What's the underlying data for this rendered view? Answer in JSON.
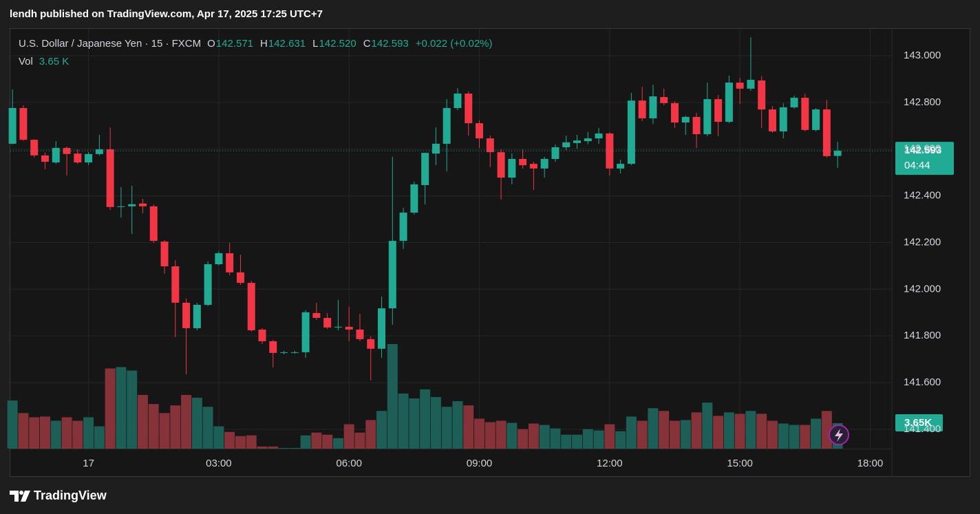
{
  "header": {
    "title": "lendh published on TradingView.com, Apr 17, 2025 17:25 UTC+7"
  },
  "footer": {
    "brand": "TradingView"
  },
  "chart_data": {
    "type": "candlestick",
    "legend": {
      "symbol": "U.S. Dollar / Japanese Yen · 15 · FXCM",
      "ohlc": [
        {
          "key": "O",
          "value": "142.571"
        },
        {
          "key": "H",
          "value": "142.631"
        },
        {
          "key": "L",
          "value": "142.520"
        },
        {
          "key": "C",
          "value": "142.593"
        }
      ],
      "change": "+0.022 (+0.02%)",
      "volume_key": "Vol",
      "volume_value": "3.65 K"
    },
    "last_price_label": "142.593",
    "countdown": "04:44",
    "volume_axis_label": "3.65K",
    "up_color": "#22ab94",
    "down_color": "#f23645",
    "volume_up_color": "#1d5f57",
    "volume_down_color": "#853238",
    "grid": true,
    "x": [
      -105,
      -90,
      -75,
      -60,
      -45,
      -30,
      -15,
      0,
      15,
      30,
      45,
      60,
      75,
      90,
      105,
      120,
      135,
      150,
      165,
      180,
      195,
      210,
      225,
      240,
      255,
      270,
      285,
      300,
      315,
      330,
      345,
      360,
      375,
      390,
      405,
      420,
      435,
      450,
      465,
      480,
      495,
      510,
      525,
      540,
      555,
      570,
      585,
      600,
      615,
      630,
      645,
      660,
      675,
      690,
      705,
      720,
      735,
      750,
      765,
      780,
      795,
      810,
      825,
      840,
      855,
      870,
      885,
      900,
      915,
      930,
      945,
      960,
      975,
      990,
      1005,
      1020,
      1035
    ],
    "open": [
      142.623,
      142.776,
      142.64,
      142.573,
      142.543,
      142.605,
      142.581,
      142.543,
      142.579,
      142.599,
      142.352,
      142.355,
      142.367,
      142.355,
      142.204,
      142.098,
      141.942,
      141.833,
      141.933,
      142.107,
      142.154,
      142.072,
      142.027,
      141.827,
      141.777,
      141.727,
      141.73,
      141.73,
      141.898,
      141.877,
      141.836,
      141.839,
      141.827,
      141.786,
      141.745,
      141.918,
      142.207,
      142.328,
      142.446,
      142.581,
      142.623,
      142.776,
      142.838,
      142.711,
      142.646,
      142.587,
      142.478,
      142.558,
      142.537,
      142.517,
      142.558,
      142.608,
      142.626,
      142.634,
      142.646,
      142.667,
      142.517,
      142.537,
      142.808,
      142.732,
      142.823,
      142.797,
      142.714,
      142.738,
      142.664,
      142.814,
      142.717,
      142.885,
      142.859,
      142.894,
      142.77,
      142.676,
      142.779,
      142.82,
      142.682,
      142.77,
      142.571
    ],
    "high": [
      142.856,
      142.788,
      142.643,
      142.585,
      142.634,
      142.611,
      142.599,
      142.587,
      142.661,
      142.693,
      142.437,
      142.443,
      142.387,
      142.363,
      142.21,
      142.125,
      141.96,
      141.942,
      142.119,
      142.163,
      142.198,
      142.148,
      142.036,
      141.833,
      141.783,
      141.736,
      141.736,
      141.91,
      141.942,
      141.898,
      141.954,
      141.924,
      141.895,
      141.798,
      141.968,
      142.567,
      142.349,
      142.461,
      142.584,
      142.693,
      142.814,
      142.861,
      142.847,
      142.723,
      142.658,
      142.599,
      142.582,
      142.599,
      142.546,
      142.567,
      142.62,
      142.658,
      142.661,
      142.673,
      142.691,
      142.673,
      142.555,
      142.841,
      142.867,
      142.876,
      142.859,
      142.805,
      142.744,
      142.755,
      142.885,
      142.832,
      142.915,
      142.906,
      143.08,
      142.912,
      142.785,
      142.797,
      142.829,
      142.838,
      142.776,
      142.811,
      142.631
    ],
    "low": [
      142.62,
      142.635,
      142.564,
      142.514,
      142.537,
      142.487,
      142.537,
      142.531,
      142.573,
      142.34,
      142.307,
      142.237,
      142.325,
      142.198,
      142.066,
      141.795,
      141.635,
      141.824,
      141.927,
      142.101,
      142.06,
      142.019,
      141.818,
      141.765,
      141.665,
      141.721,
      141.724,
      141.706,
      141.868,
      141.83,
      141.824,
      141.777,
      141.777,
      141.609,
      141.706,
      141.848,
      142.172,
      142.319,
      142.363,
      142.531,
      142.505,
      142.767,
      142.658,
      142.605,
      142.523,
      142.384,
      142.449,
      142.517,
      142.425,
      142.478,
      142.546,
      142.596,
      142.602,
      142.62,
      142.623,
      142.487,
      142.496,
      142.531,
      142.72,
      142.708,
      142.788,
      142.691,
      142.661,
      142.605,
      142.655,
      142.655,
      142.711,
      142.794,
      142.85,
      142.691,
      142.67,
      142.646,
      142.773,
      142.676,
      142.676,
      142.564,
      142.52
    ],
    "close": [
      142.776,
      142.64,
      142.573,
      142.546,
      142.605,
      142.579,
      142.543,
      142.579,
      142.599,
      142.352,
      142.355,
      142.364,
      142.355,
      142.207,
      142.098,
      141.942,
      141.833,
      141.933,
      142.107,
      142.154,
      142.072,
      142.027,
      141.824,
      141.777,
      141.727,
      141.73,
      141.73,
      141.901,
      141.877,
      141.836,
      141.839,
      141.827,
      141.786,
      141.745,
      141.918,
      142.207,
      142.328,
      142.449,
      142.584,
      142.623,
      142.776,
      142.838,
      142.711,
      142.646,
      142.587,
      142.478,
      142.558,
      142.531,
      142.517,
      142.558,
      142.608,
      142.629,
      142.637,
      142.646,
      142.667,
      142.517,
      142.537,
      142.808,
      142.732,
      142.826,
      142.797,
      142.714,
      142.738,
      142.664,
      142.814,
      142.717,
      142.885,
      142.859,
      142.897,
      142.77,
      142.676,
      142.779,
      142.82,
      142.682,
      142.77,
      142.57,
      142.593
    ],
    "volume": [
      6.9,
      5.1,
      4.5,
      4.6,
      4.0,
      4.5,
      4.0,
      4.5,
      3.2,
      11.5,
      11.7,
      11.2,
      7.7,
      6.4,
      5.1,
      6.2,
      7.7,
      7.3,
      6.0,
      3.2,
      2.4,
      1.8,
      1.9,
      0.3,
      0.3,
      0.1,
      0.1,
      1.9,
      2.3,
      2.0,
      1.5,
      3.5,
      2.3,
      4.1,
      5.4,
      15.0,
      7.9,
      7.2,
      8.5,
      7.4,
      6.0,
      6.8,
      6.2,
      4.3,
      3.8,
      4.0,
      3.7,
      2.8,
      3.6,
      3.4,
      2.9,
      2.0,
      2.0,
      2.8,
      2.6,
      3.5,
      2.5,
      4.6,
      4.0,
      5.8,
      5.4,
      4.0,
      4.1,
      5.2,
      6.6,
      4.7,
      5.2,
      5.0,
      5.4,
      5.0,
      4.0,
      3.6,
      3.4,
      3.4,
      4.3,
      5.4,
      3.65
    ],
    "xlim": [
      -108,
      1110
    ],
    "xticks": [
      {
        "value": 0,
        "label": "17"
      },
      {
        "value": 180,
        "label": "03:00"
      },
      {
        "value": 360,
        "label": "06:00"
      },
      {
        "value": 540,
        "label": "09:00"
      },
      {
        "value": 720,
        "label": "12:00"
      },
      {
        "value": 900,
        "label": "15:00"
      },
      {
        "value": 1080,
        "label": "18:00"
      }
    ],
    "ylim": [
      141.317,
      143.115
    ],
    "yticks": [
      {
        "value": 141.4,
        "label": "141.400"
      },
      {
        "value": 141.6,
        "label": "141.600"
      },
      {
        "value": 141.8,
        "label": "141.800"
      },
      {
        "value": 142,
        "label": "142.000"
      },
      {
        "value": 142.2,
        "label": "142.200"
      },
      {
        "value": 142.4,
        "label": "142.400"
      },
      {
        "value": 142.6,
        "label": "142.600"
      },
      {
        "value": 142.8,
        "label": "142.800"
      },
      {
        "value": 143,
        "label": "143.000"
      }
    ]
  }
}
